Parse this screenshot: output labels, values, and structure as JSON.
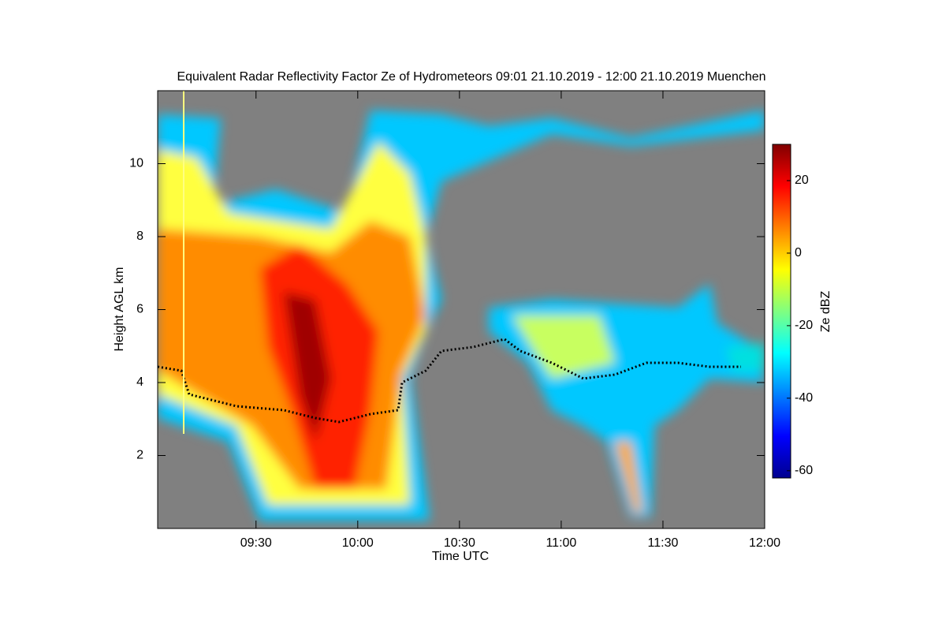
{
  "chart_data": {
    "type": "heatmap",
    "title": "Equivalent Radar Reflectivity Factor Ze of Hydrometeors   09:01 21.10.2019 - 12:00 21.10.2019 Muenchen",
    "x_label": "Time UTC",
    "y_label": "Height AGL km",
    "xlim": [
      541,
      720
    ],
    "xticks": [
      {
        "value": 570,
        "label": "09:30"
      },
      {
        "value": 600,
        "label": "10:00"
      },
      {
        "value": 630,
        "label": "10:30"
      },
      {
        "value": 660,
        "label": "11:00"
      },
      {
        "value": 690,
        "label": "11:30"
      },
      {
        "value": 720,
        "label": "12:00"
      }
    ],
    "ylim": [
      0,
      12
    ],
    "yticks": [
      2,
      4,
      6,
      8,
      10
    ],
    "colorbar": {
      "label": "Ze dBZ",
      "lim": [
        -62,
        30
      ],
      "ticks": [
        -60,
        -40,
        -20,
        0,
        20
      ],
      "colors": [
        "#00008f",
        "#0000ff",
        "#0080ff",
        "#00ffff",
        "#80ff80",
        "#ffff00",
        "#ff8000",
        "#ff0000",
        "#800000"
      ]
    },
    "background": "#808080"
  }
}
